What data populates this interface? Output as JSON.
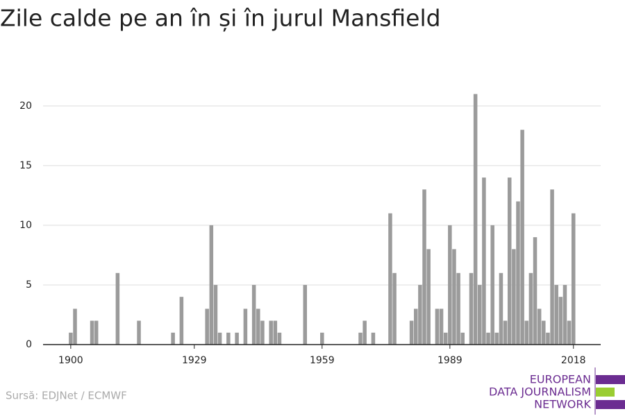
{
  "chart_data": {
    "type": "bar",
    "title": "Zile calde pe an în și în jurul Mansfield",
    "source": "Sursă: EDJNet / ECMWF",
    "logo": [
      "EUROPEAN",
      "DATA JOURNALISM",
      "NETWORK"
    ],
    "color": "#9b9b9b",
    "grid": true,
    "x": [
      1900,
      1901,
      1902,
      1903,
      1904,
      1905,
      1906,
      1907,
      1908,
      1909,
      1910,
      1911,
      1912,
      1913,
      1914,
      1915,
      1916,
      1917,
      1918,
      1919,
      1920,
      1921,
      1922,
      1923,
      1924,
      1925,
      1926,
      1927,
      1928,
      1929,
      1930,
      1931,
      1932,
      1933,
      1934,
      1935,
      1936,
      1937,
      1938,
      1939,
      1940,
      1941,
      1942,
      1943,
      1944,
      1945,
      1946,
      1947,
      1948,
      1949,
      1950,
      1951,
      1952,
      1953,
      1954,
      1955,
      1956,
      1957,
      1958,
      1959,
      1960,
      1961,
      1962,
      1963,
      1964,
      1965,
      1966,
      1967,
      1968,
      1969,
      1970,
      1971,
      1972,
      1973,
      1974,
      1975,
      1976,
      1977,
      1978,
      1979,
      1980,
      1981,
      1982,
      1983,
      1984,
      1985,
      1986,
      1987,
      1988,
      1989,
      1990,
      1991,
      1992,
      1993,
      1994,
      1995,
      1996,
      1997,
      1998,
      1999,
      2000,
      2001,
      2002,
      2003,
      2004,
      2005,
      2006,
      2007,
      2008,
      2009,
      2010,
      2011,
      2012,
      2013,
      2014,
      2015,
      2016,
      2017,
      2018
    ],
    "values": [
      1,
      3,
      0,
      0,
      0,
      2,
      2,
      0,
      0,
      0,
      0,
      6,
      0,
      0,
      0,
      0,
      2,
      0,
      0,
      0,
      0,
      0,
      0,
      0,
      1,
      0,
      4,
      0,
      0,
      0,
      0,
      0,
      3,
      10,
      5,
      1,
      0,
      1,
      0,
      1,
      0,
      3,
      0,
      5,
      3,
      2,
      0,
      2,
      2,
      1,
      0,
      0,
      0,
      0,
      0,
      5,
      0,
      0,
      0,
      1,
      0,
      0,
      0,
      0,
      0,
      0,
      0,
      0,
      1,
      2,
      0,
      1,
      0,
      0,
      0,
      11,
      6,
      0,
      0,
      0,
      2,
      3,
      5,
      13,
      8,
      0,
      3,
      3,
      1,
      10,
      8,
      6,
      1,
      0,
      6,
      21,
      5,
      14,
      1,
      10,
      1,
      6,
      2,
      14,
      8,
      12,
      18,
      2,
      6,
      9,
      3,
      2,
      1,
      13,
      5,
      4,
      5,
      2,
      11
    ],
    "xlim": [
      1893.5,
      2024.4
    ],
    "xticks": [
      1900,
      1929,
      1959,
      1989,
      2018
    ],
    "ylim": [
      0,
      21.5
    ],
    "yticks": [
      0,
      5,
      10,
      15,
      20
    ]
  }
}
